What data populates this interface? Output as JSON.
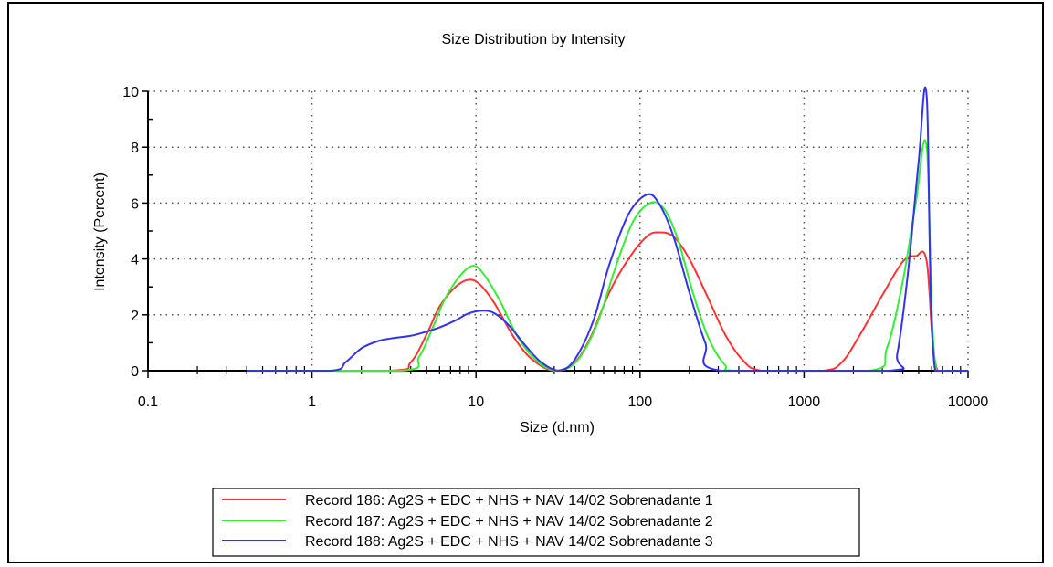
{
  "chart_data": {
    "type": "line",
    "title": "Size Distribution by Intensity",
    "xlabel": "Size (d.nm)",
    "ylabel": "Intensity (Percent)",
    "xscale": "log",
    "xlim": [
      0.1,
      10000
    ],
    "ylim": [
      0,
      10
    ],
    "x_ticks": [
      0.1,
      1,
      10,
      100,
      1000,
      10000
    ],
    "x_tick_labels": [
      "0.1",
      "1",
      "10",
      "100",
      "1000",
      "10000"
    ],
    "y_ticks": [
      0,
      2,
      4,
      6,
      8,
      10
    ],
    "y_tick_labels": [
      "0",
      "2",
      "4",
      "6",
      "8",
      "10"
    ],
    "grid": true,
    "legend_position": "bottom",
    "series": [
      {
        "name": "Record 186: Ag2S + EDC + NHS + NAV 14/02 Sobrenadante 1",
        "color": "#ff3333",
        "points": [
          [
            0.4,
            0
          ],
          [
            3.0,
            0
          ],
          [
            4.0,
            0.3
          ],
          [
            5.0,
            1.3
          ],
          [
            6.0,
            2.3
          ],
          [
            7.5,
            3.0
          ],
          [
            9.0,
            3.25
          ],
          [
            10.5,
            3.1
          ],
          [
            13,
            2.4
          ],
          [
            17,
            1.2
          ],
          [
            22,
            0.4
          ],
          [
            30,
            0
          ],
          [
            40,
            0.3
          ],
          [
            50,
            1.2
          ],
          [
            65,
            2.8
          ],
          [
            85,
            4.0
          ],
          [
            110,
            4.8
          ],
          [
            130,
            4.95
          ],
          [
            160,
            4.8
          ],
          [
            200,
            4.0
          ],
          [
            260,
            2.6
          ],
          [
            330,
            1.3
          ],
          [
            420,
            0.4
          ],
          [
            550,
            0
          ],
          [
            1300,
            0
          ],
          [
            1700,
            0.3
          ],
          [
            2200,
            1.3
          ],
          [
            3000,
            2.7
          ],
          [
            4000,
            3.9
          ],
          [
            4800,
            4.1
          ],
          [
            5600,
            3.9
          ],
          [
            6500,
            0
          ],
          [
            10000,
            0
          ]
        ]
      },
      {
        "name": "Record 187: Ag2S + EDC + NHS + NAV 14/02 Sobrenadante 2",
        "color": "#33ee33",
        "points": [
          [
            0.4,
            0
          ],
          [
            3.5,
            0
          ],
          [
            4.5,
            0.5
          ],
          [
            5.5,
            1.6
          ],
          [
            6.5,
            2.6
          ],
          [
            8,
            3.4
          ],
          [
            9.5,
            3.75
          ],
          [
            11,
            3.5
          ],
          [
            14,
            2.5
          ],
          [
            18,
            1.2
          ],
          [
            24,
            0.3
          ],
          [
            32,
            0
          ],
          [
            42,
            0.4
          ],
          [
            55,
            1.7
          ],
          [
            70,
            3.6
          ],
          [
            90,
            5.3
          ],
          [
            115,
            6.0
          ],
          [
            140,
            5.8
          ],
          [
            170,
            4.7
          ],
          [
            210,
            2.8
          ],
          [
            260,
            1.2
          ],
          [
            330,
            0.2
          ],
          [
            400,
            0
          ],
          [
            2500,
            0
          ],
          [
            3200,
            0.8
          ],
          [
            4000,
            3.2
          ],
          [
            4800,
            6.0
          ],
          [
            5600,
            8.0
          ],
          [
            6400,
            0
          ],
          [
            10000,
            0
          ]
        ]
      },
      {
        "name": "Record 188: Ag2S + EDC + NHS + NAV 14/02 Sobrenadante 3",
        "color": "#3333ee",
        "points": [
          [
            0.4,
            0
          ],
          [
            1.3,
            0
          ],
          [
            1.6,
            0.3
          ],
          [
            2.0,
            0.8
          ],
          [
            2.5,
            1.05
          ],
          [
            3.0,
            1.15
          ],
          [
            4.0,
            1.25
          ],
          [
            5.0,
            1.4
          ],
          [
            6.0,
            1.55
          ],
          [
            7.5,
            1.8
          ],
          [
            9.0,
            2.05
          ],
          [
            11,
            2.15
          ],
          [
            13,
            2.05
          ],
          [
            16,
            1.6
          ],
          [
            20,
            0.9
          ],
          [
            25,
            0.3
          ],
          [
            32,
            0
          ],
          [
            40,
            0.4
          ],
          [
            52,
            1.8
          ],
          [
            65,
            3.8
          ],
          [
            85,
            5.6
          ],
          [
            110,
            6.3
          ],
          [
            130,
            6.0
          ],
          [
            160,
            4.8
          ],
          [
            200,
            2.8
          ],
          [
            250,
            1.0
          ],
          [
            310,
            0
          ],
          [
            3300,
            0
          ],
          [
            3700,
            0.6
          ],
          [
            4300,
            3.5
          ],
          [
            5000,
            7.5
          ],
          [
            5600,
            9.8
          ],
          [
            6300,
            0
          ],
          [
            10000,
            0
          ]
        ]
      }
    ]
  }
}
